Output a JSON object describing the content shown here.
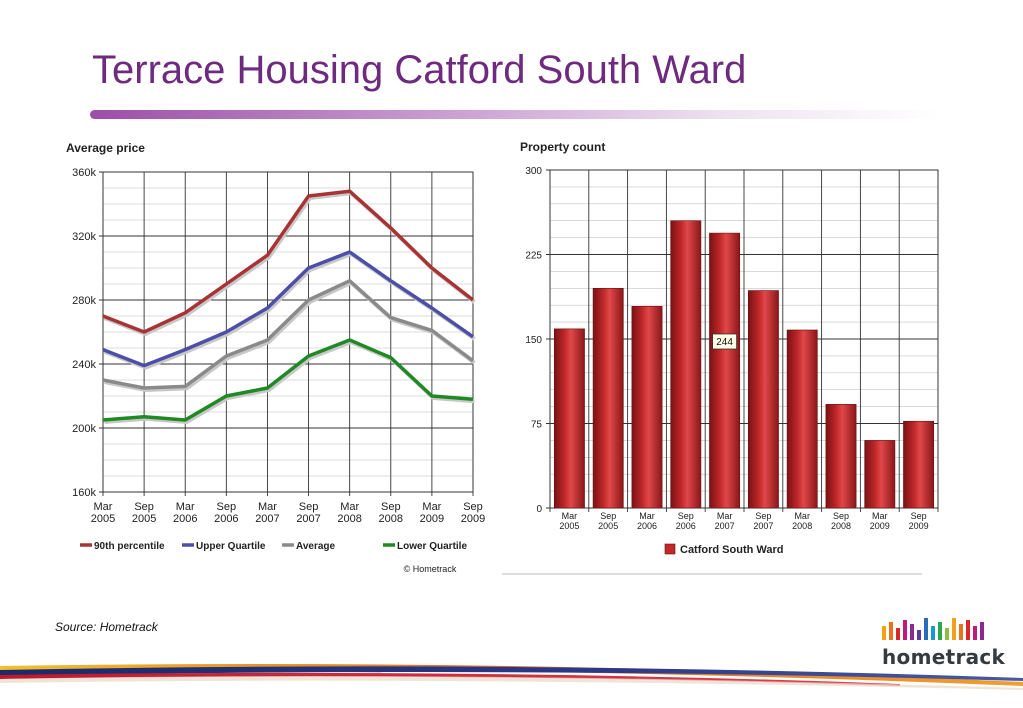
{
  "title": "Terrace Housing Catford South Ward",
  "source": "Source: Hometrack",
  "logo_text": "hometrack",
  "colors": {
    "title": "#6e2a7e",
    "bar": "#c0282a",
    "p90": "#a83234",
    "upper": "#4c4ea8",
    "average": "#8a8a8a",
    "lower": "#1f8a24"
  },
  "chart_data": [
    {
      "type": "line",
      "title": "Average price",
      "categories": [
        "Mar\n2005",
        "Sep\n2005",
        "Mar\n2006",
        "Sep\n2006",
        "Mar\n2007",
        "Sep\n2007",
        "Mar\n2008",
        "Sep\n2008",
        "Mar\n2009",
        "Sep\n2009"
      ],
      "ylim": [
        160000,
        360000
      ],
      "yticks": [
        160000,
        200000,
        240000,
        280000,
        320000,
        360000
      ],
      "ytick_labels": [
        "160k",
        "200k",
        "240k",
        "280k",
        "320k",
        "360k"
      ],
      "grid": true,
      "legend_position": "bottom",
      "series": [
        {
          "name": "90th percentile",
          "color": "#a83234",
          "values": [
            270000,
            260000,
            272000,
            290000,
            308000,
            345000,
            348000,
            325000,
            300000,
            280000
          ]
        },
        {
          "name": "Upper Quartile",
          "color": "#4c4ea8",
          "values": [
            249000,
            239000,
            249000,
            260000,
            275000,
            300000,
            310000,
            292000,
            275000,
            257000
          ]
        },
        {
          "name": "Average",
          "color": "#8a8a8a",
          "values": [
            230000,
            225000,
            226000,
            245000,
            255000,
            280000,
            292000,
            269000,
            261000,
            242000
          ]
        },
        {
          "name": "Lower Quartile",
          "color": "#1f8a24",
          "values": [
            205000,
            207000,
            205000,
            220000,
            225000,
            245000,
            255000,
            244000,
            220000,
            218000
          ]
        }
      ],
      "credit": "© Hometrack"
    },
    {
      "type": "bar",
      "title": "Property count",
      "categories": [
        "Mar\n2005",
        "Sep\n2005",
        "Mar\n2006",
        "Sep\n2006",
        "Mar\n2007",
        "Sep\n2007",
        "Mar\n2008",
        "Sep\n2008",
        "Mar\n2009",
        "Sep\n2009"
      ],
      "ylim": [
        0,
        300
      ],
      "yticks": [
        0,
        75,
        150,
        225,
        300
      ],
      "ytick_labels": [
        "0",
        "75",
        "150",
        "225",
        "300"
      ],
      "grid": true,
      "legend_position": "bottom",
      "series": [
        {
          "name": "Catford South Ward",
          "color": "#c0282a",
          "values": [
            159,
            195,
            179,
            255,
            244,
            193,
            158,
            92,
            60,
            77
          ]
        }
      ],
      "tooltip": "244"
    }
  ]
}
